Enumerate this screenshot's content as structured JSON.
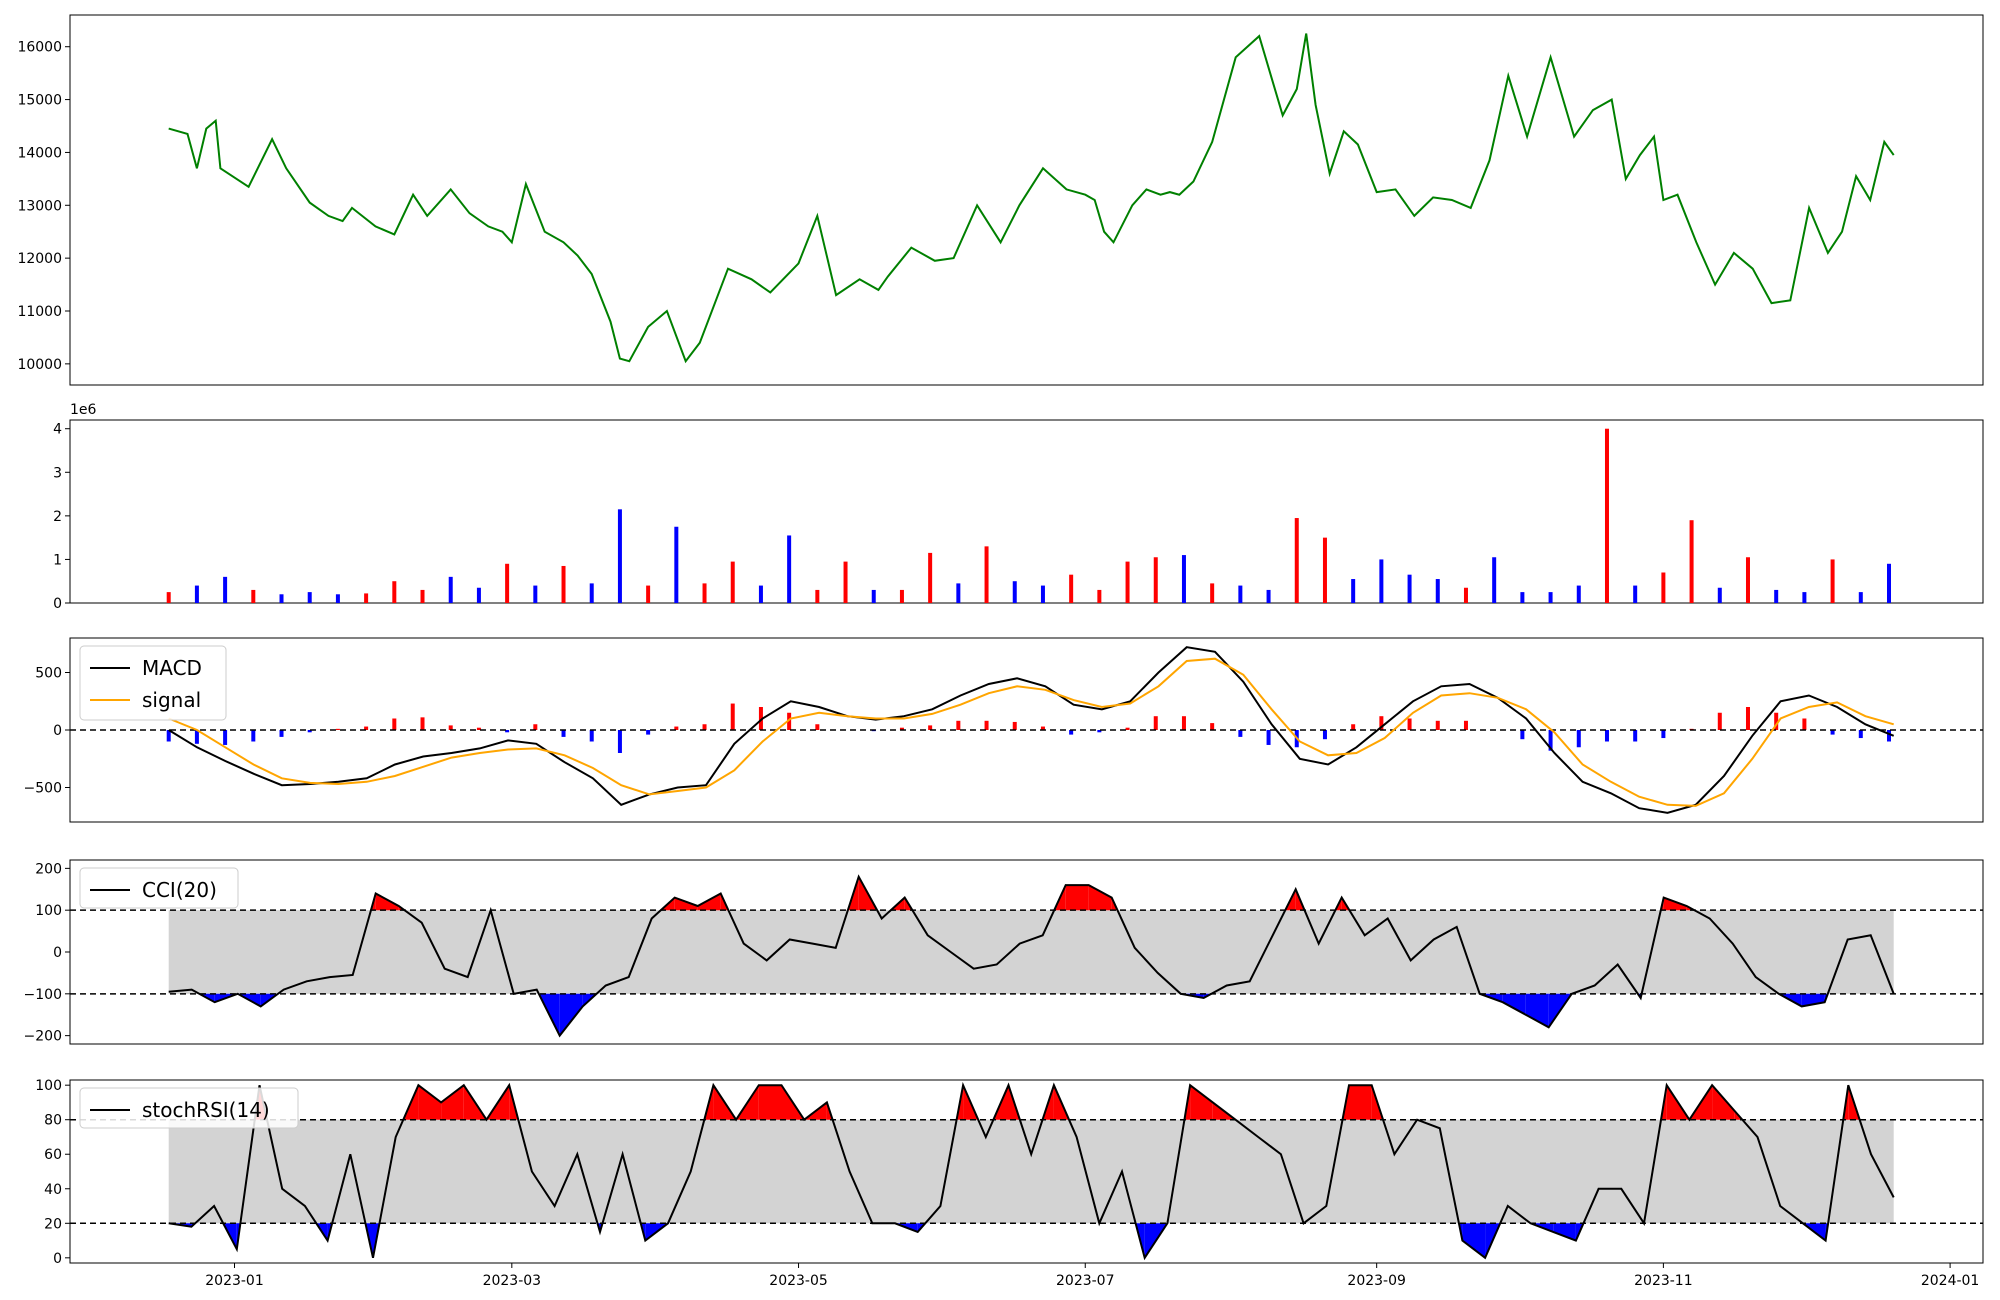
{
  "chart_data": [
    {
      "type": "line",
      "panel": "price",
      "color": "#008000",
      "x": [
        "2022-12-18",
        "2022-12-22",
        "2022-12-24",
        "2022-12-26",
        "2022-12-28",
        "2022-12-29",
        "2023-01-04",
        "2023-01-09",
        "2023-01-12",
        "2023-01-17",
        "2023-01-21",
        "2023-01-24",
        "2023-01-26",
        "2023-01-31",
        "2023-02-04",
        "2023-02-08",
        "2023-02-11",
        "2023-02-16",
        "2023-02-20",
        "2023-02-24",
        "2023-02-27",
        "2023-03-01",
        "2023-03-04",
        "2023-03-08",
        "2023-03-12",
        "2023-03-15",
        "2023-03-18",
        "2023-03-22",
        "2023-03-24",
        "2023-03-26",
        "2023-03-30",
        "2023-04-03",
        "2023-04-07",
        "2023-04-10",
        "2023-04-16",
        "2023-04-21",
        "2023-04-25",
        "2023-05-01",
        "2023-05-05",
        "2023-05-09",
        "2023-05-14",
        "2023-05-18",
        "2023-05-20",
        "2023-05-25",
        "2023-05-30",
        "2023-06-03",
        "2023-06-08",
        "2023-06-13",
        "2023-06-17",
        "2023-06-22",
        "2023-06-27",
        "2023-07-01",
        "2023-07-03",
        "2023-07-05",
        "2023-07-07",
        "2023-07-11",
        "2023-07-14",
        "2023-07-17",
        "2023-07-19",
        "2023-07-21",
        "2023-07-24",
        "2023-07-28",
        "2023-08-02",
        "2023-08-07",
        "2023-08-12",
        "2023-08-15",
        "2023-08-17",
        "2023-08-19",
        "2023-08-22",
        "2023-08-25",
        "2023-08-28",
        "2023-09-01",
        "2023-09-05",
        "2023-09-09",
        "2023-09-13",
        "2023-09-17",
        "2023-09-21",
        "2023-09-25",
        "2023-09-29",
        "2023-10-03",
        "2023-10-08",
        "2023-10-13",
        "2023-10-17",
        "2023-10-21",
        "2023-10-24",
        "2023-10-27",
        "2023-10-30",
        "2023-11-01",
        "2023-11-04",
        "2023-11-08",
        "2023-11-12",
        "2023-11-16",
        "2023-11-20",
        "2023-11-24",
        "2023-11-28",
        "2023-12-02",
        "2023-12-06",
        "2023-12-09",
        "2023-12-12",
        "2023-12-15",
        "2023-12-18",
        "2023-12-20"
      ],
      "values": [
        14450,
        14350,
        13700,
        14450,
        14600,
        13700,
        13350,
        14250,
        13700,
        13050,
        12800,
        12700,
        12950,
        12600,
        12450,
        13200,
        12800,
        13300,
        12850,
        12600,
        12500,
        12300,
        13400,
        12500,
        12300,
        12050,
        11700,
        10800,
        10100,
        10050,
        10700,
        11000,
        10050,
        10400,
        11800,
        11600,
        11350,
        11900,
        12800,
        11300,
        11600,
        11400,
        11650,
        12200,
        11950,
        12000,
        13000,
        12300,
        13000,
        13700,
        13300,
        13200,
        13100,
        12500,
        12300,
        13000,
        13300,
        13200,
        13250,
        13200,
        13450,
        14200,
        15800,
        16200,
        14700,
        15200,
        16250,
        14900,
        13600,
        14400,
        14150,
        13250,
        13300,
        12800,
        13150,
        13100,
        12950,
        13850,
        15450,
        14300,
        15800,
        14300,
        14800,
        15000,
        13500,
        13950,
        14300,
        13100,
        13200,
        12300,
        11500,
        12100,
        11800,
        11150,
        11200,
        12950,
        12100,
        12500,
        13550,
        13100,
        14200,
        13950
      ]
    },
    {
      "type": "bar",
      "panel": "volume",
      "offset_text": "1e6",
      "ylim": [
        0,
        4200000
      ],
      "x": [
        "2022-12-18",
        "2022-12-24",
        "2022-12-30",
        "2023-01-05",
        "2023-01-11",
        "2023-01-17",
        "2023-01-23",
        "2023-01-29",
        "2023-02-04",
        "2023-02-10",
        "2023-02-16",
        "2023-02-22",
        "2023-02-28",
        "2023-03-06",
        "2023-03-12",
        "2023-03-18",
        "2023-03-24",
        "2023-03-30",
        "2023-04-05",
        "2023-04-11",
        "2023-04-17",
        "2023-04-23",
        "2023-04-29",
        "2023-05-05",
        "2023-05-11",
        "2023-05-17",
        "2023-05-23",
        "2023-05-29",
        "2023-06-04",
        "2023-06-10",
        "2023-06-16",
        "2023-06-22",
        "2023-06-28",
        "2023-07-04",
        "2023-07-10",
        "2023-07-16",
        "2023-07-22",
        "2023-07-28",
        "2023-08-03",
        "2023-08-09",
        "2023-08-15",
        "2023-08-21",
        "2023-08-27",
        "2023-09-02",
        "2023-09-08",
        "2023-09-14",
        "2023-09-20",
        "2023-09-26",
        "2023-10-02",
        "2023-10-08",
        "2023-10-14",
        "2023-10-20",
        "2023-10-26",
        "2023-11-01",
        "2023-11-07",
        "2023-11-13",
        "2023-11-19",
        "2023-11-25",
        "2023-12-01",
        "2023-12-07",
        "2023-12-13",
        "2023-12-19"
      ],
      "values": [
        250000,
        400000,
        600000,
        300000,
        200000,
        250000,
        200000,
        220000,
        500000,
        300000,
        600000,
        350000,
        900000,
        400000,
        850000,
        450000,
        2150000,
        400000,
        1750000,
        450000,
        950000,
        400000,
        1550000,
        300000,
        950000,
        300000,
        300000,
        1150000,
        450000,
        1300000,
        500000,
        400000,
        650000,
        300000,
        950000,
        1050000,
        1100000,
        450000,
        400000,
        300000,
        1950000,
        1500000,
        550000,
        1000000,
        650000,
        550000,
        350000,
        1050000,
        250000,
        250000,
        400000,
        4000000,
        400000,
        700000,
        1900000,
        350000,
        1050000,
        300000,
        250000,
        1000000,
        250000,
        900000
      ],
      "up_down": [
        "up",
        "down",
        "down",
        "up",
        "down",
        "down",
        "down",
        "up",
        "up",
        "up",
        "down",
        "down",
        "up",
        "down",
        "up",
        "down",
        "down",
        "up",
        "down",
        "up",
        "up",
        "down",
        "down",
        "up",
        "up",
        "down",
        "up",
        "up",
        "down",
        "up",
        "down",
        "down",
        "up",
        "up",
        "up",
        "up",
        "down",
        "up",
        "down",
        "down",
        "up",
        "up",
        "down",
        "down",
        "down",
        "down",
        "up",
        "down",
        "down",
        "down",
        "down",
        "up",
        "down",
        "up",
        "up",
        "down",
        "up",
        "down",
        "down",
        "up",
        "down",
        "down"
      ]
    },
    {
      "type": "line",
      "panel": "macd",
      "series": [
        {
          "name": "MACD",
          "color": "#000000",
          "values": [
            0,
            -150,
            -270,
            -380,
            -480,
            -470,
            -450,
            -420,
            -300,
            -230,
            -200,
            -160,
            -90,
            -120,
            -280,
            -420,
            -650,
            -560,
            -500,
            -480,
            -120,
            100,
            250,
            200,
            120,
            90,
            120,
            180,
            300,
            400,
            450,
            380,
            220,
            180,
            250,
            500,
            720,
            680,
            420,
            50,
            -250,
            -300,
            -150,
            50,
            250,
            380,
            400,
            280,
            100,
            -200,
            -450,
            -550,
            -680,
            -720,
            -650,
            -400,
            -50,
            250,
            300,
            200,
            50,
            -50
          ]
        },
        {
          "name": "signal",
          "color": "#ffa500",
          "values": [
            100,
            0,
            -150,
            -300,
            -420,
            -460,
            -470,
            -450,
            -400,
            -320,
            -240,
            -200,
            -170,
            -160,
            -220,
            -330,
            -480,
            -560,
            -530,
            -500,
            -350,
            -100,
            100,
            150,
            120,
            100,
            100,
            140,
            220,
            320,
            380,
            350,
            260,
            200,
            230,
            380,
            600,
            620,
            480,
            180,
            -100,
            -220,
            -200,
            -70,
            150,
            300,
            320,
            280,
            180,
            -20,
            -300,
            -450,
            -580,
            -650,
            -660,
            -550,
            -250,
            100,
            200,
            240,
            120,
            50
          ]
        }
      ],
      "histogram_dates": [
        "2022-12-18",
        "2022-12-24",
        "2022-12-30",
        "2023-01-05",
        "2023-01-11",
        "2023-01-17",
        "2023-01-23",
        "2023-01-29",
        "2023-02-04",
        "2023-02-10",
        "2023-02-16",
        "2023-02-22",
        "2023-02-28",
        "2023-03-06",
        "2023-03-12",
        "2023-03-18",
        "2023-03-24",
        "2023-03-30",
        "2023-04-05",
        "2023-04-11",
        "2023-04-17",
        "2023-04-23",
        "2023-04-29",
        "2023-05-05",
        "2023-05-11",
        "2023-05-17",
        "2023-05-23",
        "2023-05-29",
        "2023-06-04",
        "2023-06-10",
        "2023-06-16",
        "2023-06-22",
        "2023-06-28",
        "2023-07-04",
        "2023-07-10",
        "2023-07-16",
        "2023-07-22",
        "2023-07-28",
        "2023-08-03",
        "2023-08-09",
        "2023-08-15",
        "2023-08-21",
        "2023-08-27",
        "2023-09-02",
        "2023-09-08",
        "2023-09-14",
        "2023-09-20",
        "2023-09-26",
        "2023-10-02",
        "2023-10-08",
        "2023-10-14",
        "2023-10-20",
        "2023-10-26",
        "2023-11-01",
        "2023-11-07",
        "2023-11-13",
        "2023-11-19",
        "2023-11-25",
        "2023-12-01",
        "2023-12-07",
        "2023-12-13",
        "2023-12-19"
      ],
      "histogram": [
        -100,
        -120,
        -130,
        -100,
        -60,
        -20,
        10,
        30,
        100,
        110,
        40,
        20,
        -20,
        50,
        -60,
        -100,
        -200,
        -40,
        30,
        50,
        230,
        200,
        150,
        50,
        0,
        -10,
        20,
        40,
        80,
        80,
        70,
        30,
        -40,
        -20,
        20,
        120,
        120,
        60,
        -60,
        -130,
        -150,
        -80,
        50,
        120,
        100,
        80,
        80,
        0,
        -80,
        -180,
        -150,
        -100,
        -100,
        -70,
        10,
        150,
        200,
        150,
        100,
        -40,
        -70,
        -100
      ],
      "ylim": [
        -800,
        800
      ],
      "baseline": 0
    },
    {
      "type": "line",
      "panel": "cci",
      "series": [
        {
          "name": "CCI(20)",
          "color": "#000000",
          "values": [
            -95,
            -90,
            -120,
            -100,
            -130,
            -90,
            -70,
            -60,
            -55,
            140,
            110,
            70,
            -40,
            -60,
            100,
            -100,
            -90,
            -200,
            -130,
            -80,
            -60,
            80,
            130,
            110,
            140,
            20,
            -20,
            30,
            20,
            10,
            180,
            80,
            130,
            40,
            0,
            -40,
            -30,
            20,
            40,
            160,
            160,
            130,
            10,
            -50,
            -100,
            -110,
            -80,
            -70,
            40,
            150,
            20,
            130,
            40,
            80,
            -20,
            30,
            60,
            -100,
            -120,
            -150,
            -180,
            -100,
            -80,
            -30,
            -110,
            130,
            110,
            80,
            20,
            -60,
            -100,
            -130,
            -120,
            30,
            40,
            -100
          ]
        }
      ],
      "fill_band": [
        -100,
        100
      ],
      "ylim": [
        -220,
        220
      ],
      "yticks": [
        -200,
        -100,
        0,
        100,
        200
      ]
    },
    {
      "type": "line",
      "panel": "stochrsi",
      "series": [
        {
          "name": "stochRSI(14)",
          "color": "#000000",
          "values": [
            20,
            18,
            30,
            5,
            100,
            40,
            30,
            10,
            60,
            0,
            70,
            100,
            90,
            100,
            80,
            100,
            50,
            30,
            60,
            15,
            60,
            10,
            20,
            50,
            100,
            80,
            100,
            100,
            80,
            90,
            50,
            20,
            20,
            15,
            30,
            100,
            70,
            100,
            60,
            100,
            70,
            20,
            50,
            0,
            20,
            100,
            90,
            80,
            70,
            60,
            20,
            30,
            100,
            100,
            60,
            80,
            75,
            10,
            0,
            30,
            20,
            15,
            10,
            40,
            40,
            20,
            100,
            80,
            100,
            85,
            70,
            30,
            20,
            10,
            100,
            60,
            35
          ]
        }
      ],
      "fill_band": [
        20,
        80
      ],
      "ylim": [
        -3,
        103
      ],
      "yticks": [
        0,
        20,
        40,
        60,
        80,
        100
      ]
    }
  ],
  "axes": {
    "price_yticks": [
      "10000",
      "11000",
      "12000",
      "13000",
      "14000",
      "15000",
      "16000"
    ],
    "volume_yticks": [
      "0",
      "1",
      "2",
      "3",
      "4"
    ],
    "macd_yticks": [
      "−500",
      "0",
      "500"
    ],
    "cci_yticks": [
      "−200",
      "−100",
      "0",
      "100",
      "200"
    ],
    "stoch_yticks": [
      "0",
      "20",
      "40",
      "60",
      "80",
      "100"
    ],
    "xticks": [
      "2023-01",
      "2023-03",
      "2023-05",
      "2023-07",
      "2023-09",
      "2023-11",
      "2024-01"
    ]
  },
  "colors": {
    "up": "#ff0000",
    "down": "#0000ff",
    "band": "#d3d3d3",
    "price": "#008000",
    "macd": "#000000",
    "signal": "#ffa500"
  }
}
